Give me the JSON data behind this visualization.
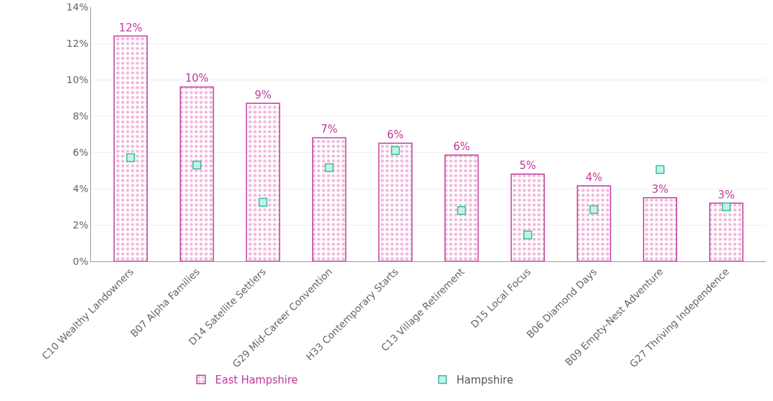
{
  "chart_data": {
    "type": "bar",
    "categories": [
      "C10 Wealthy Landowners",
      "B07 Alpha Families",
      "D14 Satellite Settlers",
      "G29 Mid-Career Convention",
      "H33 Contemporary Starts",
      "C13 Village Retirement",
      "D15 Local Focus",
      "B06 Diamond Days",
      "B09 Empty-Nest Adventure",
      "G27 Thriving Independence"
    ],
    "series": [
      {
        "name": "East Hampshire",
        "color": "#c0399a",
        "values": [
          12.4,
          9.6,
          8.7,
          6.8,
          6.5,
          5.85,
          4.8,
          4.15,
          3.5,
          3.2
        ],
        "value_labels": [
          "12%",
          "10%",
          "9%",
          "7%",
          "6%",
          "6%",
          "5%",
          "4%",
          "3%",
          "3%"
        ]
      },
      {
        "name": "Hampshire",
        "type": "scatter",
        "marker": "square",
        "color": "#2bbf9f",
        "values": [
          5.7,
          5.3,
          3.25,
          5.15,
          6.1,
          2.8,
          1.45,
          2.85,
          5.05,
          3.0
        ]
      }
    ],
    "ylim": [
      0,
      14
    ],
    "yticks": [
      {
        "value": 0,
        "label": "0%"
      },
      {
        "value": 2,
        "label": "2%"
      },
      {
        "value": 4,
        "label": "4%"
      },
      {
        "value": 6,
        "label": "6%"
      },
      {
        "value": 8,
        "label": "8%"
      },
      {
        "value": 10,
        "label": "10%"
      },
      {
        "value": 12,
        "label": "12%"
      },
      {
        "value": 14,
        "label": "14%"
      }
    ],
    "grid": "y",
    "legend": "bottom"
  }
}
